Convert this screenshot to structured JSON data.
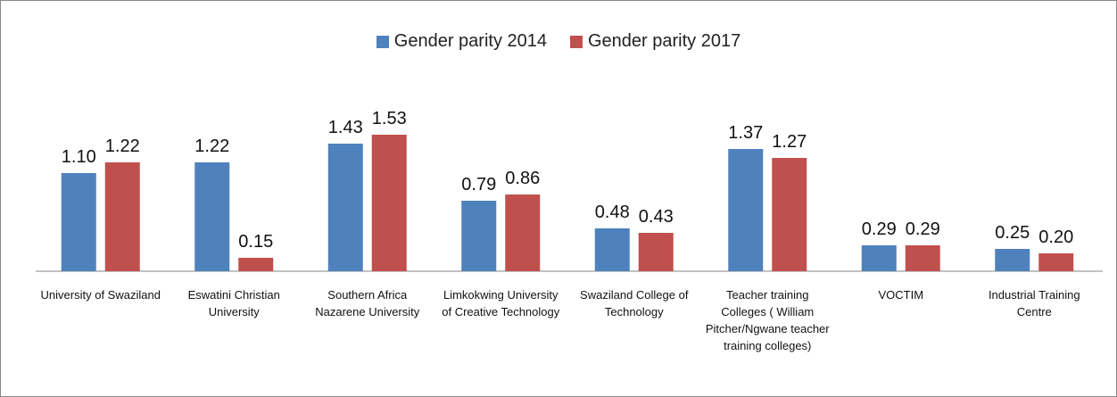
{
  "chart_data": {
    "type": "bar",
    "categories": [
      "University of Swaziland",
      "Eswatini Christian University",
      "Southern Africa Nazarene University",
      "Limkokwing University of Creative Technology",
      "Swaziland College of Technology",
      "Teacher training Colleges ( William Pitcher/Ngwane teacher training colleges)",
      "VOCTIM",
      "Industrial Training Centre"
    ],
    "series": [
      {
        "name": "Gender parity 2014",
        "color": "#4f81bd",
        "values": [
          1.1,
          1.22,
          1.43,
          0.79,
          0.48,
          1.37,
          0.29,
          0.25
        ],
        "value_labels": [
          "1.10",
          "1.22",
          "1.43",
          "0.79",
          "0.48",
          "1.37",
          "0.29",
          "0.25"
        ]
      },
      {
        "name": "Gender parity 2017",
        "color": "#c0504d",
        "values": [
          1.22,
          0.15,
          1.53,
          0.86,
          0.43,
          1.27,
          0.29,
          0.2
        ],
        "value_labels": [
          "1.22",
          "0.15",
          "1.53",
          "0.86",
          "0.43",
          "1.27",
          "0.29",
          "0.20"
        ]
      }
    ],
    "legend": "top"
  }
}
